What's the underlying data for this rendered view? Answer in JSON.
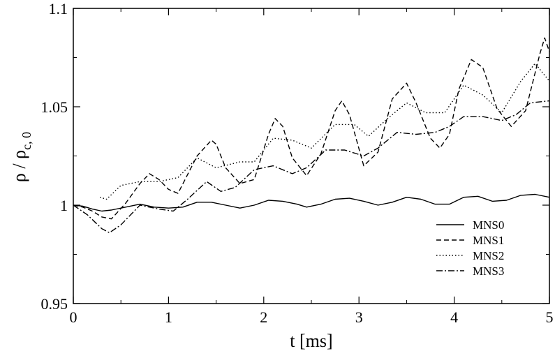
{
  "chart_data": {
    "type": "line",
    "title": "",
    "xlabel": "t [ms]",
    "ylabel": "ρ / ρ",
    "ylabel_subscript": "c, 0",
    "xlim": [
      0,
      5
    ],
    "ylim": [
      0.95,
      1.1
    ],
    "xticks": [
      0,
      1,
      2,
      3,
      4,
      5
    ],
    "xtick_labels": [
      "0",
      "1",
      "2",
      "3",
      "4",
      "5"
    ],
    "yticks": [
      0.95,
      1.0,
      1.05,
      1.1
    ],
    "ytick_labels": [
      "0.95",
      "1",
      "1.05",
      "1.1"
    ],
    "grid": false,
    "legend_position": "bottom-right",
    "series": [
      {
        "name": "MNS0",
        "style": "solid",
        "x": [
          0,
          0.1,
          0.2,
          0.3,
          0.4,
          0.55,
          0.7,
          0.85,
          1.0,
          1.15,
          1.3,
          1.45,
          1.6,
          1.75,
          1.9,
          2.05,
          2.2,
          2.35,
          2.45,
          2.6,
          2.75,
          2.9,
          3.05,
          3.2,
          3.35,
          3.5,
          3.65,
          3.8,
          3.95,
          4.1,
          4.25,
          4.4,
          4.55,
          4.7,
          4.85,
          5.0
        ],
        "y": [
          1.0,
          0.9995,
          0.998,
          0.997,
          0.9975,
          0.999,
          1.0005,
          0.999,
          0.9985,
          0.999,
          1.0015,
          1.0015,
          1.0,
          0.9985,
          1.0,
          1.0025,
          1.002,
          1.0005,
          0.999,
          1.0005,
          1.003,
          1.0035,
          1.002,
          1.0,
          1.0015,
          1.004,
          1.003,
          1.0005,
          1.0005,
          1.004,
          1.0045,
          1.002,
          1.0025,
          1.005,
          1.0055,
          1.004
        ]
      },
      {
        "name": "MNS1",
        "style": "dashed",
        "x": [
          0,
          0.1,
          0.2,
          0.3,
          0.4,
          0.55,
          0.7,
          0.8,
          0.9,
          1.0,
          1.1,
          1.3,
          1.45,
          1.5,
          1.6,
          1.75,
          1.9,
          2.05,
          2.12,
          2.2,
          2.3,
          2.45,
          2.6,
          2.75,
          2.82,
          2.9,
          3.05,
          3.2,
          3.35,
          3.5,
          3.6,
          3.75,
          3.85,
          3.95,
          4.05,
          4.18,
          4.3,
          4.45,
          4.6,
          4.75,
          4.9,
          4.95,
          5.0
        ],
        "y": [
          1.0,
          0.999,
          0.997,
          0.994,
          0.993,
          1.001,
          1.011,
          1.016,
          1.013,
          1.008,
          1.006,
          1.025,
          1.033,
          1.031,
          1.019,
          1.011,
          1.013,
          1.036,
          1.044,
          1.04,
          1.024,
          1.015,
          1.026,
          1.048,
          1.053,
          1.046,
          1.02,
          1.027,
          1.054,
          1.062,
          1.052,
          1.034,
          1.029,
          1.036,
          1.059,
          1.074,
          1.07,
          1.049,
          1.04,
          1.048,
          1.077,
          1.085,
          1.078
        ]
      },
      {
        "name": "MNS2",
        "style": "dotted",
        "x": [
          0.28,
          0.35,
          0.5,
          0.7,
          0.9,
          1.1,
          1.3,
          1.5,
          1.75,
          1.9,
          2.1,
          2.3,
          2.5,
          2.75,
          2.95,
          3.1,
          3.3,
          3.5,
          3.7,
          3.9,
          4.1,
          4.3,
          4.5,
          4.7,
          4.85,
          5.0
        ],
        "y": [
          1.004,
          1.003,
          1.01,
          1.012,
          1.012,
          1.014,
          1.024,
          1.019,
          1.022,
          1.022,
          1.034,
          1.033,
          1.029,
          1.041,
          1.041,
          1.035,
          1.044,
          1.052,
          1.047,
          1.047,
          1.061,
          1.056,
          1.047,
          1.063,
          1.072,
          1.063
        ]
      },
      {
        "name": "MNS3",
        "style": "dashdot",
        "x": [
          0,
          0.15,
          0.3,
          0.38,
          0.5,
          0.7,
          0.9,
          1.05,
          1.2,
          1.4,
          1.55,
          1.7,
          1.9,
          2.1,
          2.3,
          2.45,
          2.65,
          2.85,
          3.05,
          3.2,
          3.4,
          3.6,
          3.8,
          3.95,
          4.1,
          4.3,
          4.5,
          4.65,
          4.8,
          5.0
        ],
        "y": [
          1.0,
          0.995,
          0.988,
          0.986,
          0.99,
          1.0,
          0.998,
          0.997,
          1.003,
          1.012,
          1.007,
          1.009,
          1.018,
          1.02,
          1.016,
          1.019,
          1.028,
          1.028,
          1.025,
          1.029,
          1.037,
          1.036,
          1.037,
          1.04,
          1.045,
          1.045,
          1.043,
          1.046,
          1.052,
          1.053
        ]
      }
    ]
  }
}
